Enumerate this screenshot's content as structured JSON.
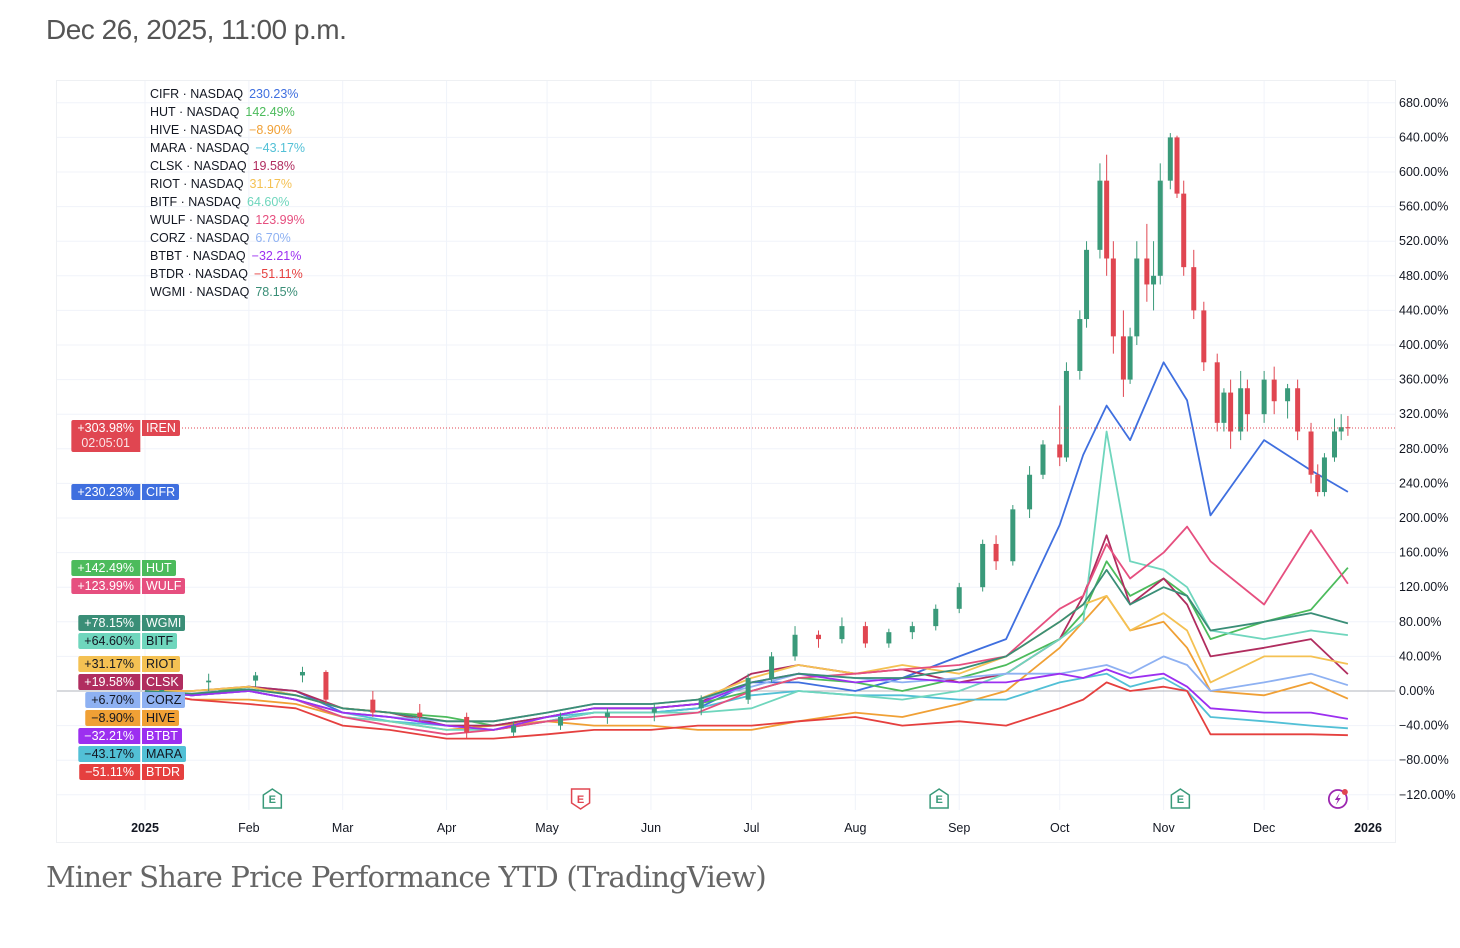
{
  "header": {
    "timestamp": "Dec 26, 2025, 11:00 p.m."
  },
  "caption": "Miner Share Price Performance YTD (TradingView)",
  "chart_data": {
    "type": "line",
    "y_unit": "%",
    "ylim": [
      -120,
      680
    ],
    "y_ticks": [
      -120,
      -80,
      -40,
      0,
      40,
      80,
      120,
      160,
      200,
      240,
      280,
      320,
      360,
      400,
      440,
      480,
      520,
      560,
      600,
      640,
      680
    ],
    "y_tick_labels": [
      "−120.00%",
      "−80.00%",
      "−40.00%",
      "0.00%",
      "40.00%",
      "80.00%",
      "120.00%",
      "160.00%",
      "200.00%",
      "240.00%",
      "280.00%",
      "320.00%",
      "360.00%",
      "400.00%",
      "440.00%",
      "480.00%",
      "520.00%",
      "560.00%",
      "600.00%",
      "640.00%",
      "680.00%"
    ],
    "x_ticks": [
      {
        "date": "2025-01-01",
        "label": "2025",
        "bold": true
      },
      {
        "date": "2025-02-01",
        "label": "Feb"
      },
      {
        "date": "2025-03-01",
        "label": "Mar"
      },
      {
        "date": "2025-04-01",
        "label": "Apr"
      },
      {
        "date": "2025-05-01",
        "label": "May"
      },
      {
        "date": "2025-06-01",
        "label": "Jun"
      },
      {
        "date": "2025-07-01",
        "label": "Jul"
      },
      {
        "date": "2025-08-01",
        "label": "Aug"
      },
      {
        "date": "2025-09-01",
        "label": "Sep"
      },
      {
        "date": "2025-10-01",
        "label": "Oct"
      },
      {
        "date": "2025-11-01",
        "label": "Nov"
      },
      {
        "date": "2025-12-01",
        "label": "Dec"
      },
      {
        "date": "2026-01-01",
        "label": "2026",
        "bold": true
      }
    ],
    "xlim": [
      "2025-01-01",
      "2026-01-01"
    ],
    "grid": true,
    "legend_position": "top-left",
    "dates": [
      "2025-01-01",
      "2025-01-15",
      "2025-02-01",
      "2025-02-15",
      "2025-03-01",
      "2025-03-15",
      "2025-04-01",
      "2025-04-15",
      "2025-05-01",
      "2025-05-15",
      "2025-06-01",
      "2025-06-15",
      "2025-07-01",
      "2025-07-15",
      "2025-08-01",
      "2025-08-15",
      "2025-09-01",
      "2025-09-15",
      "2025-10-01",
      "2025-10-08",
      "2025-10-15",
      "2025-10-22",
      "2025-11-01",
      "2025-11-08",
      "2025-11-15",
      "2025-12-01",
      "2025-12-15",
      "2025-12-26"
    ],
    "series": [
      {
        "name": "CIFR",
        "exchange": "NASDAQ",
        "last": "230.23%",
        "tag": "+230.23%",
        "color": "#3f6fdf",
        "tag_text": "#ffffff",
        "values": [
          0,
          -5,
          5,
          0,
          -25,
          -30,
          -40,
          -45,
          -35,
          -25,
          -25,
          -20,
          10,
          10,
          0,
          15,
          40,
          60,
          192,
          273,
          330,
          290,
          380,
          336,
          203,
          290,
          255,
          230.23
        ]
      },
      {
        "name": "HUT",
        "exchange": "NASDAQ",
        "last": "142.49%",
        "tag": "+142.49%",
        "color": "#4cbb5c",
        "tag_text": "#ffffff",
        "values": [
          0,
          -5,
          5,
          -5,
          -20,
          -25,
          -30,
          -40,
          -30,
          -20,
          -20,
          -15,
          0,
          15,
          10,
          0,
          15,
          30,
          60,
          90,
          150,
          110,
          130,
          110,
          60,
          80,
          94,
          142.49
        ]
      },
      {
        "name": "HIVE",
        "exchange": "NASDAQ",
        "last": "−8.90%",
        "tag": "−8.90%",
        "color": "#f0a035",
        "tag_text": "#131722",
        "values": [
          0,
          -10,
          -10,
          -15,
          -30,
          -35,
          -45,
          -40,
          -35,
          -40,
          -40,
          -45,
          -45,
          -35,
          -25,
          -30,
          -15,
          0,
          50,
          80,
          110,
          70,
          80,
          50,
          0,
          -5,
          10,
          -8.9
        ]
      },
      {
        "name": "MARA",
        "exchange": "NASDAQ",
        "last": "−43.17%",
        "tag": "−43.17%",
        "color": "#52c0d6",
        "tag_text": "#131722",
        "values": [
          0,
          -5,
          0,
          -10,
          -25,
          -35,
          -40,
          -40,
          -30,
          -25,
          -25,
          -20,
          -5,
          0,
          -5,
          -5,
          -10,
          -10,
          10,
          15,
          20,
          5,
          15,
          0,
          -30,
          -35,
          -40,
          -43.17
        ]
      },
      {
        "name": "CLSK",
        "exchange": "NASDAQ",
        "last": "19.58%",
        "tag": "+19.58%",
        "color": "#b02d5f",
        "tag_text": "#ffffff",
        "values": [
          0,
          0,
          5,
          0,
          -20,
          -25,
          -40,
          -40,
          -30,
          -20,
          -20,
          -15,
          20,
          30,
          20,
          25,
          10,
          20,
          60,
          110,
          180,
          100,
          130,
          100,
          40,
          50,
          60,
          19.58
        ]
      },
      {
        "name": "RIOT",
        "exchange": "NASDAQ",
        "last": "31.17%",
        "tag": "+31.17%",
        "color": "#f4c153",
        "tag_text": "#131722",
        "values": [
          0,
          0,
          5,
          -5,
          -20,
          -25,
          -35,
          -35,
          -25,
          -15,
          -15,
          -10,
          15,
          30,
          20,
          30,
          20,
          40,
          80,
          100,
          110,
          70,
          90,
          70,
          10,
          40,
          40,
          31.17
        ]
      },
      {
        "name": "BITF",
        "exchange": "NASDAQ",
        "last": "64.60%",
        "tag": "+64.60%",
        "color": "#6fd6bd",
        "tag_text": "#131722",
        "values": [
          0,
          -5,
          0,
          -10,
          -30,
          -35,
          -45,
          -45,
          -35,
          -25,
          -25,
          -25,
          -20,
          0,
          -5,
          -10,
          0,
          20,
          60,
          80,
          300,
          150,
          140,
          120,
          70,
          60,
          70,
          64.6
        ]
      },
      {
        "name": "WULF",
        "exchange": "NASDAQ",
        "last": "123.99%",
        "tag": "+123.99%",
        "color": "#e64f7f",
        "tag_text": "#ffffff",
        "values": [
          0,
          -5,
          0,
          -10,
          -30,
          -40,
          -50,
          -45,
          -35,
          -30,
          -30,
          -25,
          0,
          15,
          20,
          25,
          30,
          40,
          95,
          110,
          170,
          130,
          160,
          190,
          150,
          100,
          186,
          123.99
        ]
      },
      {
        "name": "CORZ",
        "exchange": "NASDAQ",
        "last": "6.70%",
        "tag": "+6.70%",
        "color": "#8eb1f2",
        "tag_text": "#131722",
        "values": [
          0,
          -5,
          0,
          -10,
          -25,
          -30,
          -35,
          -35,
          -25,
          -15,
          -15,
          -10,
          5,
          20,
          15,
          10,
          15,
          20,
          20,
          25,
          30,
          20,
          40,
          30,
          0,
          10,
          20,
          6.7
        ]
      },
      {
        "name": "BTBT",
        "exchange": "NASDAQ",
        "last": "−32.21%",
        "tag": "−32.21%",
        "color": "#9c2ff0",
        "tag_text": "#ffffff",
        "values": [
          0,
          -5,
          0,
          -10,
          -25,
          -30,
          -40,
          -45,
          -30,
          -20,
          -20,
          -15,
          10,
          20,
          10,
          15,
          10,
          10,
          20,
          15,
          25,
          15,
          20,
          5,
          -20,
          -25,
          -25,
          -32.21
        ]
      },
      {
        "name": "BTDR",
        "exchange": "NASDAQ",
        "last": "−51.11%",
        "tag": "−51.11%",
        "color": "#e5403f",
        "tag_text": "#ffffff",
        "values": [
          0,
          -10,
          -15,
          -20,
          -40,
          -45,
          -55,
          -55,
          -50,
          -45,
          -45,
          -40,
          -40,
          -35,
          -30,
          -40,
          -35,
          -40,
          -20,
          -10,
          10,
          0,
          5,
          0,
          -50,
          -50,
          -50,
          -51.11
        ]
      },
      {
        "name": "WGMI",
        "exchange": "NASDAQ",
        "last": "78.15%",
        "tag": "+78.15%",
        "color": "#3a8e77",
        "tag_text": "#ffffff",
        "values": [
          0,
          -3,
          2,
          -5,
          -20,
          -25,
          -35,
          -35,
          -25,
          -15,
          -15,
          -10,
          10,
          20,
          15,
          15,
          25,
          40,
          80,
          100,
          140,
          100,
          120,
          110,
          70,
          80,
          90,
          78.15
        ]
      }
    ],
    "main_series": {
      "name": "IREN",
      "tag": "+303.98%",
      "countdown": "02:05:01",
      "last": 303.98,
      "type": "candlestick",
      "up_color": "#3a9a7a",
      "down_color": "#e04651",
      "ohlc": [
        [
          "2025-01-06",
          0,
          15,
          -5,
          10
        ],
        [
          "2025-01-20",
          10,
          20,
          0,
          12
        ],
        [
          "2025-02-03",
          12,
          22,
          5,
          18
        ],
        [
          "2025-02-17",
          18,
          28,
          10,
          22
        ],
        [
          "2025-02-24",
          22,
          24,
          -15,
          -10
        ],
        [
          "2025-03-10",
          -10,
          0,
          -30,
          -25
        ],
        [
          "2025-03-24",
          -25,
          -15,
          -35,
          -30
        ],
        [
          "2025-04-07",
          -30,
          -25,
          -55,
          -48
        ],
        [
          "2025-04-21",
          -48,
          -35,
          -52,
          -40
        ],
        [
          "2025-05-05",
          -40,
          -25,
          -45,
          -30
        ],
        [
          "2025-05-19",
          -30,
          -20,
          -38,
          -25
        ],
        [
          "2025-06-02",
          -25,
          -15,
          -35,
          -20
        ],
        [
          "2025-06-16",
          -20,
          -5,
          -28,
          -10
        ],
        [
          "2025-06-30",
          -10,
          20,
          -15,
          15
        ],
        [
          "2025-07-07",
          15,
          45,
          10,
          40
        ],
        [
          "2025-07-14",
          40,
          75,
          35,
          65
        ],
        [
          "2025-07-21",
          65,
          70,
          50,
          60
        ],
        [
          "2025-07-28",
          60,
          85,
          55,
          75
        ],
        [
          "2025-08-04",
          75,
          80,
          50,
          55
        ],
        [
          "2025-08-11",
          55,
          72,
          50,
          68
        ],
        [
          "2025-08-18",
          68,
          80,
          60,
          75
        ],
        [
          "2025-08-25",
          75,
          100,
          70,
          95
        ],
        [
          "2025-09-01",
          95,
          125,
          90,
          120
        ],
        [
          "2025-09-08",
          120,
          175,
          115,
          170
        ],
        [
          "2025-09-12",
          170,
          180,
          140,
          150
        ],
        [
          "2025-09-17",
          150,
          215,
          145,
          210
        ],
        [
          "2025-09-22",
          210,
          260,
          200,
          250
        ],
        [
          "2025-09-26",
          250,
          290,
          245,
          285
        ],
        [
          "2025-10-01",
          285,
          330,
          260,
          270
        ],
        [
          "2025-10-03",
          270,
          380,
          265,
          370
        ],
        [
          "2025-10-07",
          370,
          440,
          360,
          430
        ],
        [
          "2025-10-09",
          430,
          520,
          420,
          510
        ],
        [
          "2025-10-13",
          510,
          610,
          500,
          590
        ],
        [
          "2025-10-15",
          590,
          620,
          480,
          500
        ],
        [
          "2025-10-17",
          500,
          520,
          390,
          410
        ],
        [
          "2025-10-20",
          410,
          440,
          340,
          360
        ],
        [
          "2025-10-22",
          360,
          420,
          355,
          410
        ],
        [
          "2025-10-24",
          410,
          520,
          400,
          500
        ],
        [
          "2025-10-27",
          500,
          540,
          450,
          470
        ],
        [
          "2025-10-29",
          470,
          520,
          440,
          480
        ],
        [
          "2025-10-31",
          480,
          610,
          470,
          590
        ],
        [
          "2025-11-03",
          590,
          645,
          580,
          640
        ],
        [
          "2025-11-05",
          640,
          642,
          570,
          575
        ],
        [
          "2025-11-07",
          575,
          590,
          480,
          490
        ],
        [
          "2025-11-10",
          490,
          510,
          430,
          440
        ],
        [
          "2025-11-13",
          440,
          450,
          370,
          380
        ],
        [
          "2025-11-17",
          380,
          390,
          300,
          310
        ],
        [
          "2025-11-19",
          310,
          350,
          300,
          345
        ],
        [
          "2025-11-21",
          345,
          360,
          280,
          300
        ],
        [
          "2025-11-24",
          300,
          370,
          290,
          350
        ],
        [
          "2025-11-26",
          350,
          360,
          300,
          320
        ],
        [
          "2025-12-01",
          320,
          370,
          310,
          360
        ],
        [
          "2025-12-04",
          360,
          375,
          320,
          335
        ],
        [
          "2025-12-08",
          335,
          355,
          315,
          350
        ],
        [
          "2025-12-11",
          350,
          360,
          290,
          300
        ],
        [
          "2025-12-15",
          300,
          310,
          240,
          250
        ],
        [
          "2025-12-17",
          250,
          262,
          225,
          230
        ],
        [
          "2025-12-19",
          230,
          275,
          225,
          270
        ],
        [
          "2025-12-22",
          270,
          315,
          265,
          300
        ],
        [
          "2025-12-24",
          300,
          320,
          290,
          305
        ],
        [
          "2025-12-26",
          305,
          318,
          295,
          303.98
        ]
      ]
    },
    "events": [
      {
        "date": "2025-02-08",
        "label": "E",
        "icon": "earnings-icon",
        "color": "#3a9a7a"
      },
      {
        "date": "2025-05-11",
        "label": "E",
        "icon": "earnings-icon",
        "color": "#e04651"
      },
      {
        "date": "2025-08-26",
        "label": "E",
        "icon": "earnings-icon",
        "color": "#3a9a7a"
      },
      {
        "date": "2025-11-06",
        "label": "E",
        "icon": "earnings-icon",
        "color": "#3a9a7a"
      },
      {
        "date": "2025-12-23",
        "label": "",
        "icon": "lightning-icon",
        "color": "#9c27b0"
      }
    ]
  }
}
